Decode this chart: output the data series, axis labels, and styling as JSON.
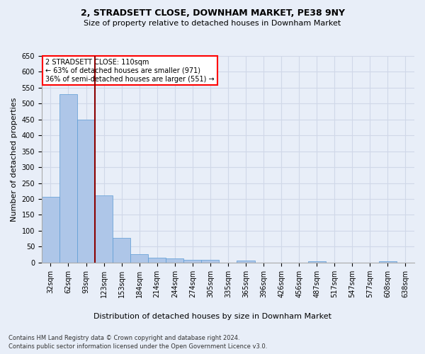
{
  "title": "2, STRADSETT CLOSE, DOWNHAM MARKET, PE38 9NY",
  "subtitle": "Size of property relative to detached houses in Downham Market",
  "xlabel": "Distribution of detached houses by size in Downham Market",
  "ylabel": "Number of detached properties",
  "footnote1": "Contains HM Land Registry data © Crown copyright and database right 2024.",
  "footnote2": "Contains public sector information licensed under the Open Government Licence v3.0.",
  "bar_labels": [
    "32sqm",
    "62sqm",
    "93sqm",
    "123sqm",
    "153sqm",
    "184sqm",
    "214sqm",
    "244sqm",
    "274sqm",
    "305sqm",
    "335sqm",
    "365sqm",
    "396sqm",
    "426sqm",
    "456sqm",
    "487sqm",
    "517sqm",
    "547sqm",
    "577sqm",
    "608sqm",
    "638sqm"
  ],
  "bar_values": [
    207,
    530,
    450,
    211,
    78,
    26,
    15,
    12,
    8,
    8,
    0,
    7,
    0,
    0,
    0,
    5,
    0,
    0,
    0,
    5,
    0
  ],
  "bar_color": "#aec6e8",
  "bar_edge_color": "#5b9bd5",
  "grid_color": "#d0d8e8",
  "background_color": "#e8eef8",
  "property_label": "2 STRADSETT CLOSE: 110sqm",
  "pct_smaller": 63,
  "n_smaller": 971,
  "pct_semi_larger": 36,
  "n_semi_larger": 551,
  "vline_x": 2.5,
  "ylim": [
    0,
    650
  ],
  "yticks": [
    0,
    50,
    100,
    150,
    200,
    250,
    300,
    350,
    400,
    450,
    500,
    550,
    600,
    650
  ],
  "title_fontsize": 9,
  "subtitle_fontsize": 8,
  "axis_label_fontsize": 8,
  "tick_fontsize": 7,
  "footnote_fontsize": 6,
  "annotation_fontsize": 7
}
